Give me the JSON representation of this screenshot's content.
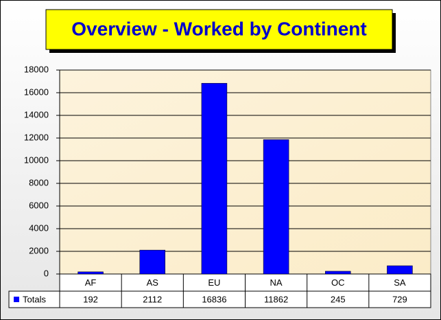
{
  "chart_data": {
    "type": "bar",
    "title": "Overview - Worked by Continent",
    "categories": [
      "AF",
      "AS",
      "EU",
      "NA",
      "OC",
      "SA"
    ],
    "series": [
      {
        "name": "Totals",
        "color": "#0000ff",
        "values": [
          192,
          2112,
          16836,
          11862,
          245,
          729
        ]
      }
    ],
    "ylim": [
      0,
      18000
    ],
    "yticks": [
      0,
      2000,
      4000,
      6000,
      8000,
      10000,
      12000,
      14000,
      16000,
      18000
    ],
    "grid": true
  }
}
